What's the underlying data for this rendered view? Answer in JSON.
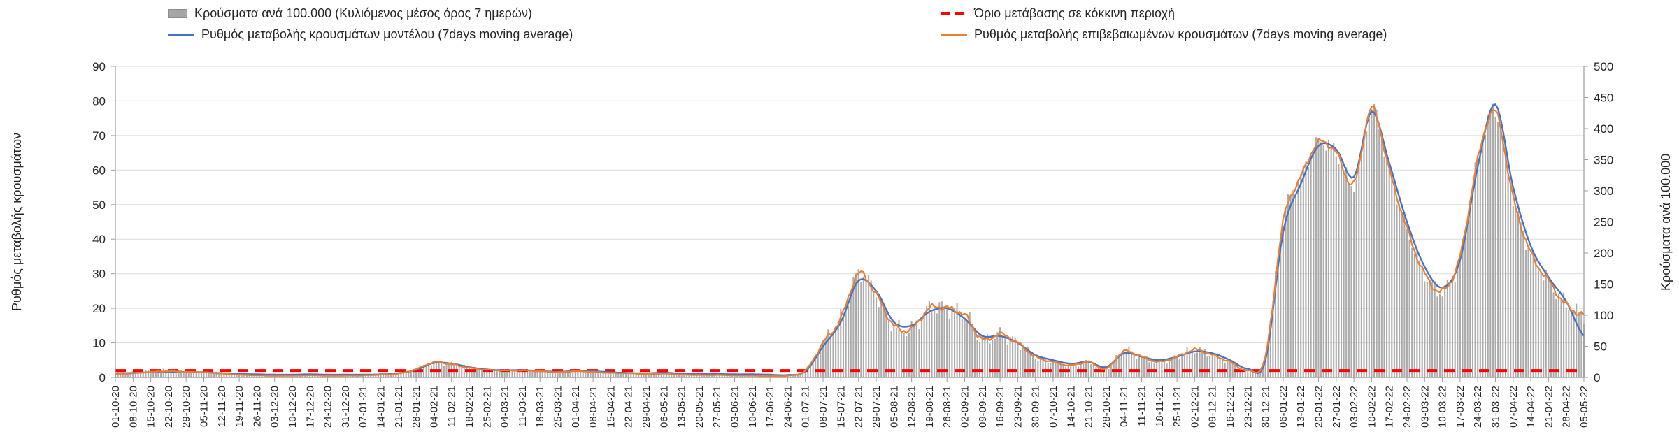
{
  "legend": {
    "items": [
      {
        "label": "Κρούσματα ανά 100.000 (Κυλιόμενος μέσος όρος 7 ημερών)",
        "type": "bar",
        "color": "#a6a6a6"
      },
      {
        "label": "Όριο μετάβασης σε κόκκινη περιοχή",
        "type": "dashed-line",
        "color": "#ff0000"
      },
      {
        "label": "Ρυθμός μεταβολής κρουσμάτων μοντέλου (7days moving average)",
        "type": "line",
        "color": "#4472c4"
      },
      {
        "label": "Ρυθμός μεταβολής επιβεβαιωμένων κρουσμάτων (7days moving average)",
        "type": "line",
        "color": "#ed7d31"
      }
    ]
  },
  "chart_data": {
    "type": "combo-bar-line",
    "left_axis": {
      "title": "Ρυθμός μεταβολής κρουσμάτων",
      "min": 0,
      "max": 90,
      "step": 10
    },
    "right_axis": {
      "title": "Κρούσματα ανά 100.000",
      "min": 0,
      "max": 500,
      "step": 50
    },
    "grid": true,
    "legend_position": "top",
    "x": [
      "01-10-20",
      "08-10-20",
      "15-10-20",
      "22-10-20",
      "29-10-20",
      "05-11-20",
      "12-11-20",
      "19-11-20",
      "26-11-20",
      "03-12-20",
      "10-12-20",
      "17-12-20",
      "24-12-20",
      "31-12-20",
      "07-01-21",
      "14-01-21",
      "21-01-21",
      "28-01-21",
      "04-02-21",
      "11-02-21",
      "18-02-21",
      "25-02-21",
      "04-03-21",
      "11-03-21",
      "18-03-21",
      "25-03-21",
      "01-04-21",
      "08-04-21",
      "15-04-21",
      "22-04-21",
      "29-04-21",
      "06-05-21",
      "13-05-21",
      "20-05-21",
      "27-05-21",
      "03-06-21",
      "10-06-21",
      "17-06-21",
      "24-06-21",
      "01-07-21",
      "08-07-21",
      "15-07-21",
      "22-07-21",
      "29-07-21",
      "05-08-21",
      "12-08-21",
      "19-08-21",
      "26-08-21",
      "02-09-21",
      "09-09-21",
      "16-09-21",
      "23-09-21",
      "30-09-21",
      "07-10-21",
      "14-10-21",
      "21-10-21",
      "28-10-21",
      "04-11-21",
      "11-11-21",
      "18-11-21",
      "25-11-21",
      "02-12-21",
      "09-12-21",
      "16-12-21",
      "23-12-21",
      "30-12-21",
      "06-01-22",
      "13-01-22",
      "20-01-22",
      "27-01-22",
      "03-02-22",
      "10-02-22",
      "17-02-22",
      "24-02-22",
      "03-03-22",
      "10-03-22",
      "17-03-22",
      "24-03-22",
      "31-03-22",
      "07-04-22",
      "14-04-22",
      "21-04-22",
      "28-04-22",
      "05-05-22"
    ],
    "series": [
      {
        "name": "Κρούσματα ανά 100.000 (Κυλιόμενος μέσος όρος 7 ημερών)",
        "type": "bar",
        "axis": "right",
        "color": "#ababab",
        "values": [
          8,
          9,
          11,
          12,
          11,
          10,
          8,
          6,
          5,
          4,
          4,
          4,
          4,
          4,
          4,
          5,
          7,
          13,
          24,
          21,
          16,
          12,
          11,
          11,
          10,
          8,
          10,
          9,
          7,
          7,
          6,
          6,
          4,
          4,
          4,
          3,
          3,
          2,
          3,
          11,
          56,
          95,
          167,
          133,
          83,
          78,
          111,
          111,
          100,
          61,
          69,
          56,
          33,
          25,
          19,
          25,
          14,
          42,
          33,
          25,
          33,
          44,
          36,
          25,
          11,
          33,
          250,
          322,
          378,
          361,
          311,
          433,
          333,
          239,
          167,
          139,
          194,
          350,
          428,
          289,
          200,
          156,
          117,
          100
        ]
      },
      {
        "name": "Όριο μετάβασης σε κόκκινη περιοχή",
        "type": "threshold",
        "axis": "left",
        "color": "#ff0000",
        "value": 2
      },
      {
        "name": "Ρυθμός μεταβολής κρουσμάτων μοντέλου (7days moving average)",
        "type": "line",
        "axis": "left",
        "color": "#4472c4",
        "values": [
          1.2,
          1.3,
          1.5,
          1.6,
          1.5,
          1.5,
          1.2,
          1.0,
          0.9,
          0.8,
          0.8,
          0.9,
          0.8,
          0.8,
          0.8,
          0.9,
          1.2,
          2.2,
          4.2,
          4.0,
          3.0,
          2.3,
          2.1,
          2.1,
          1.9,
          1.6,
          1.9,
          1.8,
          1.5,
          1.3,
          1.2,
          1.4,
          1.1,
          1.0,
          1.0,
          0.9,
          0.9,
          0.8,
          0.7,
          1.8,
          9,
          16,
          28,
          25,
          16,
          15,
          19,
          20,
          17,
          12,
          12,
          10,
          6.5,
          5,
          4,
          4.5,
          3,
          7,
          6,
          5,
          6,
          7.5,
          7,
          5,
          2.5,
          5,
          42,
          56,
          67,
          66,
          58,
          77,
          62,
          45,
          32,
          26,
          34,
          61,
          79,
          55,
          38,
          29,
          22,
          12
        ]
      },
      {
        "name": "Ρυθμός μεταβολής επιβεβαιωμένων κρουσμάτων (7days moving average)",
        "type": "line",
        "axis": "left",
        "color": "#ed7d31",
        "values": [
          1.0,
          1.2,
          1.6,
          1.8,
          1.6,
          1.5,
          1.1,
          0.8,
          0.6,
          0.5,
          0.5,
          0.6,
          0.5,
          0.5,
          0.6,
          0.8,
          1.1,
          2.4,
          4.4,
          3.8,
          2.8,
          2.2,
          2.0,
          2.0,
          1.8,
          1.5,
          1.8,
          1.6,
          1.3,
          1.2,
          1.0,
          1.1,
          0.8,
          0.7,
          0.7,
          0.6,
          0.5,
          0.4,
          0.5,
          2.0,
          10,
          17,
          30,
          24,
          15,
          14,
          20,
          20,
          18,
          11,
          12.5,
          10,
          6,
          4.5,
          3.5,
          4.5,
          2.5,
          7.5,
          6,
          4.5,
          6,
          8,
          6.5,
          4.5,
          2,
          6,
          45,
          58,
          68,
          65,
          56,
          78,
          60,
          43,
          30,
          25,
          35,
          63,
          77,
          52,
          36,
          28,
          21,
          18
        ]
      }
    ]
  }
}
